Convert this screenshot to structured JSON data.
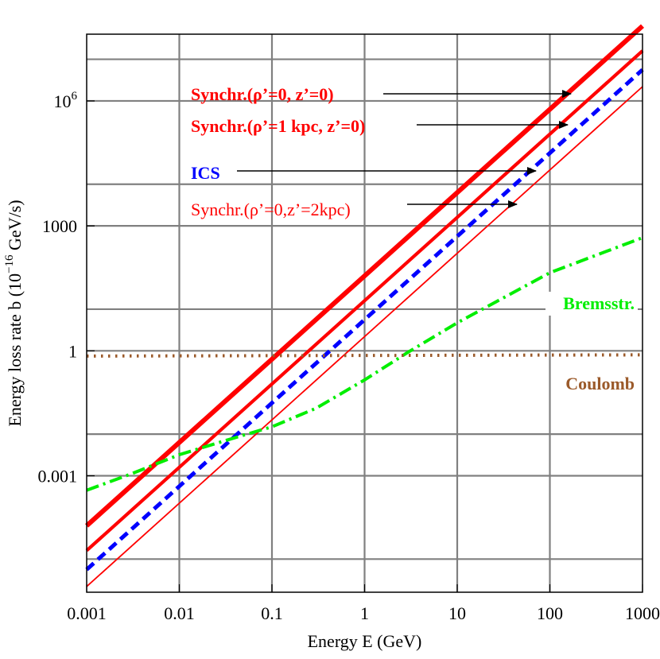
{
  "chart_data": {
    "type": "line",
    "title": "",
    "xlabel": "Energy E (GeV)",
    "ylabel": "Energy loss rate b (10⁻¹⁶ GeV/s)",
    "xscale": "log",
    "yscale": "log",
    "xlim": [
      0.001,
      1000
    ],
    "ylim": [
      1.6e-06,
      40000000
    ],
    "grid": true,
    "x_ticks": [
      {
        "value": 0.001,
        "label": "0.001"
      },
      {
        "value": 0.01,
        "label": "0.01"
      },
      {
        "value": 0.1,
        "label": "0.1"
      },
      {
        "value": 1,
        "label": "1"
      },
      {
        "value": 10,
        "label": "10"
      },
      {
        "value": 100,
        "label": "100"
      },
      {
        "value": 1000,
        "label": "1000"
      }
    ],
    "y_ticks": [
      {
        "value": 0.001,
        "label": "0.001"
      },
      {
        "value": 1,
        "label": "1"
      },
      {
        "value": 1000,
        "label": "1000"
      },
      {
        "value": 1000000,
        "label": "10⁶"
      }
    ],
    "y_gridlines": [
      1e-05,
      0.001,
      0.01,
      1,
      10,
      1000,
      10000,
      1000000,
      10000000
    ],
    "series": [
      {
        "name": "Synchr.(ρ’=0, z’=0)",
        "color": "#ff0000",
        "style": "thick",
        "x": [
          0.001,
          1000
        ],
        "y": [
          6.3e-05,
          63000000
        ]
      },
      {
        "name": "Synchr.(ρ’=1 kpc, z’=0)",
        "color": "#ff0000",
        "style": "medium",
        "x": [
          0.001,
          1000
        ],
        "y": [
          1.6e-05,
          16000000
        ]
      },
      {
        "name": "ICS",
        "color": "#0000ff",
        "style": "dashed",
        "x": [
          0.001,
          1000
        ],
        "y": [
          5.6e-06,
          5600000
        ]
      },
      {
        "name": "Synchr.(ρ’=0,z’=2kpc)",
        "color": "#ff0000",
        "style": "thin",
        "x": [
          0.001,
          1000
        ],
        "y": [
          2.2e-06,
          2200000
        ]
      },
      {
        "name": "Bremsstr.",
        "color": "#00ee00",
        "style": "dashdot",
        "x": [
          0.001,
          0.003,
          0.01,
          0.03,
          0.1,
          0.3,
          1,
          3,
          10,
          100,
          1000
        ],
        "y": [
          0.00045,
          0.0011,
          0.0032,
          0.0068,
          0.015,
          0.042,
          0.2,
          0.95,
          4.7,
          75,
          520
        ]
      },
      {
        "name": "Coulomb",
        "color": "#9b5a2a",
        "style": "dotted",
        "x": [
          0.001,
          1000
        ],
        "y": [
          0.75,
          0.8
        ]
      }
    ],
    "annotations": [
      {
        "text": "Synchr.(ρ’=0, z’=0)",
        "color": "#ff0000",
        "arrow": true
      },
      {
        "text": "Synchr.(ρ’=1 kpc, z’=0)",
        "color": "#ff0000",
        "arrow": true
      },
      {
        "text": "ICS",
        "color": "#0000ff",
        "arrow": true
      },
      {
        "text": "Synchr.(ρ’=0,z’=2kpc)",
        "color": "#ff0000",
        "arrow": true
      },
      {
        "text": "Bremsstr.",
        "color": "#00ee00",
        "arrow": false
      },
      {
        "text": "Coulomb",
        "color": "#9b5a2a",
        "arrow": false
      }
    ]
  }
}
